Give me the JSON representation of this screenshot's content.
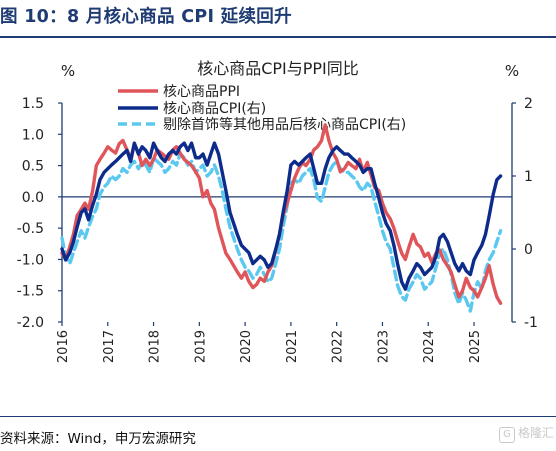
{
  "figure_title": "图 10：8 月核心商品 CPI 延续回升",
  "source_text": "资料来源：Wind，申万宏源研究",
  "watermark_text": "格隆汇",
  "chart_data": {
    "type": "line",
    "title": "核心商品CPI与PPI同比",
    "y_unit_left": "%",
    "y_unit_right": "%",
    "ylim_left": [
      -2.0,
      1.5
    ],
    "ylim_right": [
      -1,
      2
    ],
    "yticks_left": [
      "1.5",
      "1.0",
      "0.5",
      "0.0",
      "-0.5",
      "-1.0",
      "-1.5",
      "-2.0"
    ],
    "yticks_right": [
      "2",
      "1",
      "0",
      "-1"
    ],
    "xticks": [
      "2016",
      "2017",
      "2018",
      "2019",
      "2020",
      "2021",
      "2022",
      "2023",
      "2024",
      "2025"
    ],
    "xlim": [
      2016.0,
      2025.83
    ],
    "colors": {
      "ppi": "#e0555a",
      "cpi": "#0d2b8a",
      "cpi_ex": "#5bc8f0",
      "axis": "#1f3b73"
    },
    "series": [
      {
        "name": "核心商品PPI",
        "axis": "left",
        "style": "solid",
        "x": [
          2016.0,
          2016.08,
          2016.17,
          2016.25,
          2016.33,
          2016.42,
          2016.5,
          2016.58,
          2016.67,
          2016.75,
          2016.83,
          2016.92,
          2017.0,
          2017.08,
          2017.17,
          2017.25,
          2017.33,
          2017.42,
          2017.5,
          2017.58,
          2017.67,
          2017.75,
          2017.83,
          2017.92,
          2018.0,
          2018.08,
          2018.17,
          2018.25,
          2018.33,
          2018.42,
          2018.5,
          2018.58,
          2018.67,
          2018.75,
          2018.83,
          2018.92,
          2019.0,
          2019.08,
          2019.17,
          2019.25,
          2019.33,
          2019.42,
          2019.5,
          2019.58,
          2019.67,
          2019.75,
          2019.83,
          2019.92,
          2020.0,
          2020.08,
          2020.17,
          2020.25,
          2020.33,
          2020.42,
          2020.5,
          2020.58,
          2020.67,
          2020.75,
          2020.83,
          2020.92,
          2021.0,
          2021.08,
          2021.17,
          2021.25,
          2021.33,
          2021.42,
          2021.5,
          2021.58,
          2021.67,
          2021.75,
          2021.83,
          2021.92,
          2022.0,
          2022.08,
          2022.17,
          2022.25,
          2022.33,
          2022.42,
          2022.5,
          2022.58,
          2022.67,
          2022.75,
          2022.83,
          2022.92,
          2023.0,
          2023.08,
          2023.17,
          2023.25,
          2023.33,
          2023.42,
          2023.5,
          2023.58,
          2023.67,
          2023.75,
          2023.83,
          2023.92,
          2024.0,
          2024.08,
          2024.17,
          2024.25,
          2024.33,
          2024.42,
          2024.5,
          2024.58,
          2024.67,
          2024.75,
          2024.83,
          2024.92,
          2025.0,
          2025.08,
          2025.17,
          2025.25,
          2025.33,
          2025.42,
          2025.5,
          2025.58
        ],
        "y": [
          -0.9,
          -1.0,
          -0.8,
          -0.6,
          -0.3,
          -0.2,
          -0.1,
          -0.2,
          0.1,
          0.5,
          0.6,
          0.7,
          0.8,
          0.75,
          0.7,
          0.85,
          0.9,
          0.75,
          0.6,
          0.85,
          0.7,
          0.5,
          0.6,
          0.5,
          0.6,
          0.75,
          0.7,
          0.65,
          0.6,
          0.75,
          0.8,
          0.7,
          0.6,
          0.55,
          0.5,
          0.4,
          0.3,
          0.0,
          0.1,
          -0.1,
          -0.2,
          -0.5,
          -0.7,
          -0.9,
          -1.0,
          -1.1,
          -1.2,
          -1.3,
          -1.2,
          -1.35,
          -1.45,
          -1.4,
          -1.3,
          -1.35,
          -1.2,
          -1.1,
          -0.85,
          -0.6,
          -0.3,
          -0.1,
          0.1,
          0.3,
          0.45,
          0.55,
          0.5,
          0.6,
          0.75,
          0.8,
          0.9,
          1.15,
          0.9,
          0.7,
          0.6,
          0.4,
          0.45,
          0.55,
          0.5,
          0.45,
          0.6,
          0.4,
          0.55,
          0.35,
          0.15,
          0.1,
          -0.1,
          -0.25,
          -0.35,
          -0.5,
          -0.7,
          -0.9,
          -1.0,
          -0.8,
          -0.6,
          -0.75,
          -0.8,
          -0.95,
          -0.9,
          -1.05,
          -0.9,
          -0.85,
          -1.0,
          -1.1,
          -1.2,
          -1.4,
          -1.6,
          -1.5,
          -1.3,
          -1.45,
          -1.5,
          -1.6,
          -1.45,
          -1.3,
          -1.1,
          -1.4,
          -1.6,
          -1.7
        ]
      },
      {
        "name": "核心商品CPI(右)",
        "axis": "right",
        "style": "solid",
        "x": [
          2016.0,
          2016.08,
          2016.17,
          2016.25,
          2016.33,
          2016.42,
          2016.5,
          2016.58,
          2016.67,
          2016.75,
          2016.83,
          2016.92,
          2017.0,
          2017.08,
          2017.17,
          2017.25,
          2017.33,
          2017.42,
          2017.5,
          2017.58,
          2017.67,
          2017.75,
          2017.83,
          2017.92,
          2018.0,
          2018.08,
          2018.17,
          2018.25,
          2018.33,
          2018.42,
          2018.5,
          2018.58,
          2018.67,
          2018.75,
          2018.83,
          2018.92,
          2019.0,
          2019.08,
          2019.17,
          2019.25,
          2019.33,
          2019.42,
          2019.5,
          2019.58,
          2019.67,
          2019.75,
          2019.83,
          2019.92,
          2020.0,
          2020.08,
          2020.17,
          2020.25,
          2020.33,
          2020.42,
          2020.5,
          2020.58,
          2020.67,
          2020.75,
          2020.83,
          2020.92,
          2021.0,
          2021.08,
          2021.17,
          2021.25,
          2021.33,
          2021.42,
          2021.5,
          2021.58,
          2021.67,
          2021.75,
          2021.83,
          2021.92,
          2022.0,
          2022.08,
          2022.17,
          2022.25,
          2022.33,
          2022.42,
          2022.5,
          2022.58,
          2022.67,
          2022.75,
          2022.83,
          2022.92,
          2023.0,
          2023.08,
          2023.17,
          2023.25,
          2023.33,
          2023.42,
          2023.5,
          2023.58,
          2023.67,
          2023.75,
          2023.83,
          2023.92,
          2024.0,
          2024.08,
          2024.17,
          2024.25,
          2024.33,
          2024.42,
          2024.5,
          2024.58,
          2024.67,
          2024.75,
          2024.83,
          2024.92,
          2025.0,
          2025.08,
          2025.17,
          2025.25,
          2025.33,
          2025.42,
          2025.5,
          2025.58
        ],
        "y": [
          0.0,
          -0.15,
          -0.05,
          0.1,
          0.3,
          0.5,
          0.55,
          0.4,
          0.6,
          0.75,
          0.95,
          1.05,
          1.1,
          1.15,
          1.2,
          1.25,
          1.3,
          1.35,
          1.2,
          1.45,
          1.3,
          1.4,
          1.35,
          1.25,
          1.45,
          1.35,
          1.25,
          1.2,
          1.3,
          1.35,
          1.3,
          1.4,
          1.45,
          1.35,
          1.45,
          1.25,
          1.25,
          1.3,
          1.15,
          1.3,
          1.45,
          1.3,
          1.05,
          0.8,
          0.5,
          0.35,
          0.2,
          0.05,
          0.0,
          -0.05,
          -0.2,
          -0.15,
          -0.1,
          -0.15,
          -0.25,
          -0.2,
          0.0,
          0.2,
          0.5,
          0.8,
          1.15,
          1.2,
          1.15,
          1.2,
          1.25,
          1.3,
          1.1,
          0.9,
          0.9,
          1.1,
          1.25,
          1.35,
          1.4,
          1.35,
          1.3,
          1.3,
          1.25,
          1.2,
          1.15,
          1.05,
          1.1,
          1.1,
          0.9,
          0.7,
          0.5,
          0.35,
          0.25,
          0.05,
          -0.2,
          -0.45,
          -0.55,
          -0.4,
          -0.3,
          -0.2,
          -0.25,
          -0.35,
          -0.3,
          -0.25,
          -0.1,
          0.15,
          0.2,
          0.1,
          -0.05,
          -0.2,
          -0.3,
          -0.2,
          -0.3,
          -0.35,
          -0.15,
          -0.05,
          0.05,
          0.2,
          0.45,
          0.75,
          0.95,
          1.0
        ]
      },
      {
        "name": "剔除首饰等其他用品后核心商品CPI(右)",
        "axis": "right",
        "style": "dashed",
        "x": [
          2016.0,
          2016.08,
          2016.17,
          2016.25,
          2016.33,
          2016.42,
          2016.5,
          2016.58,
          2016.67,
          2016.75,
          2016.83,
          2016.92,
          2017.0,
          2017.08,
          2017.17,
          2017.25,
          2017.33,
          2017.42,
          2017.5,
          2017.58,
          2017.67,
          2017.75,
          2017.83,
          2017.92,
          2018.0,
          2018.08,
          2018.17,
          2018.25,
          2018.33,
          2018.42,
          2018.5,
          2018.58,
          2018.67,
          2018.75,
          2018.83,
          2018.92,
          2019.0,
          2019.08,
          2019.17,
          2019.25,
          2019.33,
          2019.42,
          2019.5,
          2019.58,
          2019.67,
          2019.75,
          2019.83,
          2019.92,
          2020.0,
          2020.08,
          2020.17,
          2020.25,
          2020.33,
          2020.42,
          2020.5,
          2020.58,
          2020.67,
          2020.75,
          2020.83,
          2020.92,
          2021.0,
          2021.08,
          2021.17,
          2021.25,
          2021.33,
          2021.42,
          2021.5,
          2021.58,
          2021.67,
          2021.75,
          2021.83,
          2021.92,
          2022.0,
          2022.08,
          2022.17,
          2022.25,
          2022.33,
          2022.42,
          2022.5,
          2022.58,
          2022.67,
          2022.75,
          2022.83,
          2022.92,
          2023.0,
          2023.08,
          2023.17,
          2023.25,
          2023.33,
          2023.42,
          2023.5,
          2023.58,
          2023.67,
          2023.75,
          2023.83,
          2023.92,
          2024.0,
          2024.08,
          2024.17,
          2024.25,
          2024.33,
          2024.42,
          2024.5,
          2024.58,
          2024.67,
          2024.75,
          2024.83,
          2024.92,
          2025.0,
          2025.08,
          2025.17,
          2025.25,
          2025.33,
          2025.42,
          2025.5,
          2025.58
        ],
        "y": [
          0.15,
          -0.1,
          -0.2,
          -0.05,
          0.1,
          0.25,
          0.15,
          0.3,
          0.45,
          0.55,
          0.75,
          0.85,
          0.9,
          1.0,
          0.95,
          1.0,
          1.1,
          1.05,
          1.15,
          1.2,
          1.1,
          1.2,
          1.15,
          1.05,
          1.25,
          1.2,
          1.15,
          1.05,
          1.1,
          1.2,
          1.15,
          1.3,
          1.25,
          1.15,
          1.2,
          1.05,
          1.1,
          1.15,
          1.0,
          1.05,
          1.15,
          1.0,
          0.8,
          0.55,
          0.3,
          0.15,
          0.0,
          -0.15,
          -0.25,
          -0.3,
          -0.4,
          -0.35,
          -0.25,
          -0.35,
          -0.45,
          -0.4,
          -0.2,
          0.0,
          0.3,
          0.6,
          0.9,
          0.95,
          0.9,
          1.0,
          1.05,
          1.1,
          0.95,
          0.7,
          0.65,
          0.85,
          1.05,
          1.15,
          1.2,
          1.1,
          1.05,
          1.05,
          1.0,
          0.95,
          0.85,
          0.8,
          0.9,
          0.85,
          0.65,
          0.45,
          0.25,
          0.1,
          0.0,
          -0.25,
          -0.5,
          -0.65,
          -0.7,
          -0.55,
          -0.45,
          -0.35,
          -0.4,
          -0.55,
          -0.5,
          -0.45,
          -0.25,
          -0.05,
          0.0,
          -0.15,
          -0.35,
          -0.6,
          -0.75,
          -0.6,
          -0.7,
          -0.85,
          -0.6,
          -0.45,
          -0.55,
          -0.3,
          -0.15,
          -0.05,
          0.1,
          0.25
        ]
      }
    ]
  }
}
